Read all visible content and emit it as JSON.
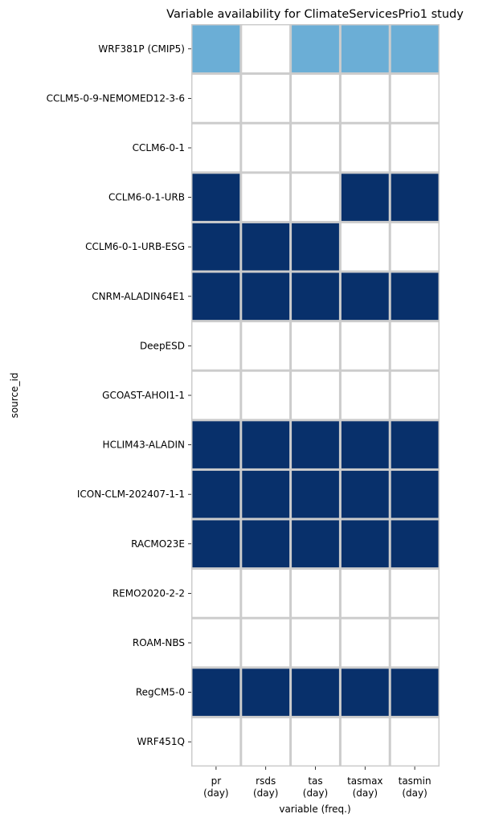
{
  "chart_data": {
    "type": "heatmap",
    "title": "Variable availability for ClimateServicesPrio1 study",
    "xlabel": "variable (freq.)",
    "ylabel": "source_id",
    "columns": [
      {
        "name": "pr",
        "freq": "(day)"
      },
      {
        "name": "rsds",
        "freq": "(day)"
      },
      {
        "name": "tas",
        "freq": "(day)"
      },
      {
        "name": "tasmax",
        "freq": "(day)"
      },
      {
        "name": "tasmin",
        "freq": "(day)"
      }
    ],
    "rows": [
      "WRF381P (CMIP5)",
      "CCLM5-0-9-NEMOMED12-3-6",
      "CCLM6-0-1",
      "CCLM6-0-1-URB",
      "CCLM6-0-1-URB-ESG",
      "CNRM-ALADIN64E1",
      "DeepESD",
      "GCOAST-AHOI1-1",
      "HCLIM43-ALADIN",
      "ICON-CLM-202407-1-1",
      "RACMO23E",
      "REMO2020-2-2",
      "ROAM-NBS",
      "RegCM5-0",
      "WRF451Q"
    ],
    "values": [
      [
        1,
        0,
        1,
        1,
        1
      ],
      [
        0,
        0,
        0,
        0,
        0
      ],
      [
        0,
        0,
        0,
        0,
        0
      ],
      [
        2,
        0,
        0,
        2,
        2
      ],
      [
        2,
        2,
        2,
        0,
        0
      ],
      [
        2,
        2,
        2,
        2,
        2
      ],
      [
        0,
        0,
        0,
        0,
        0
      ],
      [
        0,
        0,
        0,
        0,
        0
      ],
      [
        2,
        2,
        2,
        2,
        2
      ],
      [
        2,
        2,
        2,
        2,
        2
      ],
      [
        2,
        2,
        2,
        2,
        2
      ],
      [
        0,
        0,
        0,
        0,
        0
      ],
      [
        0,
        0,
        0,
        0,
        0
      ],
      [
        2,
        2,
        2,
        2,
        2
      ],
      [
        0,
        0,
        0,
        0,
        0
      ]
    ],
    "color_map": {
      "0": "#ffffff",
      "1": "#6baed6",
      "2": "#08306b"
    },
    "grid_line_color": "#cccccc",
    "legend": "none"
  }
}
